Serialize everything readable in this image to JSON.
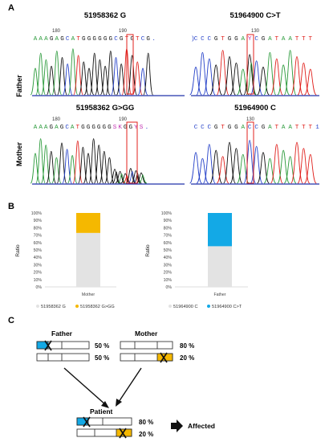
{
  "panel_a": {
    "letter": "A",
    "row_labels": [
      "Father",
      "Mother"
    ],
    "chroms": [
      {
        "title": "51958362 G",
        "position_label": "180",
        "position_label_2": "190",
        "bases": [
          "A",
          "A",
          "A",
          "G",
          "A",
          "G",
          "C",
          "A",
          "T",
          "G",
          "G",
          "G",
          "G",
          "G",
          "G",
          "C",
          "G",
          "T",
          "G",
          "T",
          "C",
          "G"
        ],
        "suffix": ".",
        "highlight_index": 15
      },
      {
        "title": "51964900 C>T",
        "position_label": "130",
        "bases": [
          "C",
          "C",
          "C",
          "G",
          "T",
          "G",
          "G",
          "A",
          "Y",
          "C",
          "G",
          "A",
          "T",
          "A",
          "A",
          "T",
          "T",
          "T"
        ],
        "prefix": ")",
        "highlight_index": 8
      },
      {
        "title": "51958362 G>GG",
        "position_label": "180",
        "position_label_2": "190",
        "bases": [
          "A",
          "A",
          "A",
          "G",
          "A",
          "G",
          "C",
          "A",
          "T",
          "G",
          "G",
          "G",
          "G",
          "G",
          "G",
          "S",
          "K",
          "G",
          "G",
          "Y",
          "S"
        ],
        "suffix": ".",
        "highlight_index": 15
      },
      {
        "title": "51964900 C",
        "position_label": "130",
        "bases": [
          "C",
          "C",
          "C",
          "G",
          "T",
          "G",
          "G",
          "A",
          "C",
          "C",
          "G",
          "A",
          "T",
          "A",
          "A",
          "T",
          "T",
          "T"
        ],
        "suffix": "1",
        "highlight_index": 8
      }
    ]
  },
  "panel_b": {
    "letter": "B",
    "colors": {
      "gray": "#e3e3e3",
      "yellow": "#f5b800",
      "blue": "#13a9e6"
    },
    "chart_data": [
      {
        "type": "bar",
        "stacked": true,
        "categories": [
          "Mother"
        ],
        "series": [
          {
            "name": "51958362 G",
            "values": [
              73
            ]
          },
          {
            "name": "51958362 G>GG",
            "values": [
              27
            ]
          }
        ],
        "ylabel": "Ratio",
        "ylim": [
          0,
          100
        ],
        "yticks": [
          "0%",
          "10%",
          "20%",
          "30%",
          "40%",
          "50%",
          "60%",
          "70%",
          "80%",
          "90%",
          "100%"
        ]
      },
      {
        "type": "bar",
        "stacked": true,
        "categories": [
          "Father"
        ],
        "series": [
          {
            "name": "51964900 C",
            "values": [
              55
            ]
          },
          {
            "name": "51964900 C>T",
            "values": [
              45
            ]
          }
        ],
        "ylabel": "Ratio",
        "ylim": [
          0,
          100
        ],
        "yticks": [
          "0%",
          "10%",
          "20%",
          "30%",
          "40%",
          "50%",
          "60%",
          "70%",
          "80%",
          "90%",
          "100%"
        ]
      }
    ]
  },
  "panel_c": {
    "letter": "C",
    "father": {
      "name": "Father",
      "pcts": [
        "50 %",
        "50 %"
      ]
    },
    "mother": {
      "name": "Mother",
      "pcts": [
        "80 %",
        "20 %"
      ]
    },
    "patient": {
      "name": "Patient",
      "pcts": [
        "80 %",
        "20 %"
      ]
    },
    "result": "Affected"
  }
}
